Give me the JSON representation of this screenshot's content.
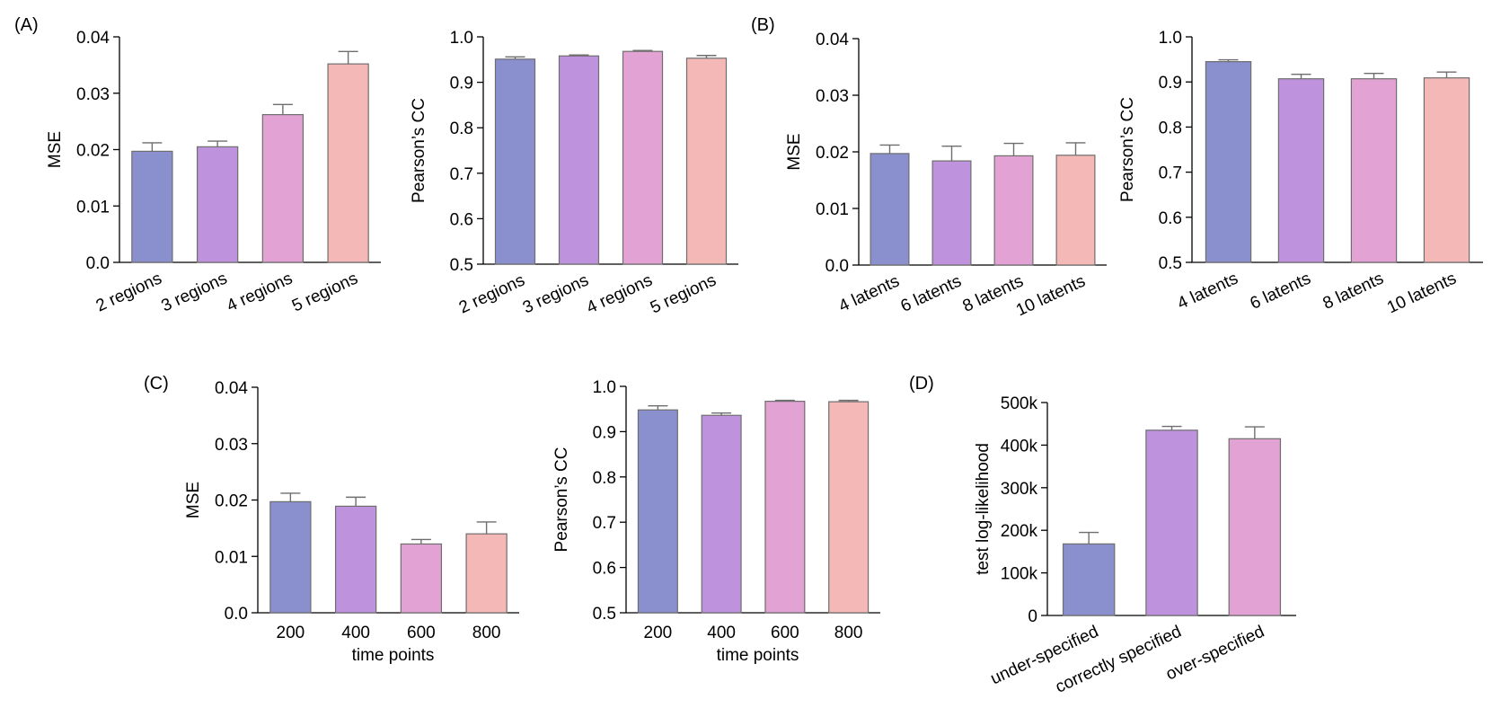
{
  "panel_labels": [
    "(A)",
    "(B)",
    "(C)",
    "(D)"
  ],
  "colors": [
    "#8a8fcd",
    "#be92dc",
    "#e2a2d3",
    "#f4b9b7"
  ],
  "chart_data": [
    {
      "id": "A-mse",
      "panel": "(A)",
      "type": "bar",
      "categories": [
        "2 regions",
        "3 regions",
        "4 regions",
        "5 regions"
      ],
      "values": [
        0.0197,
        0.0205,
        0.0262,
        0.0352
      ],
      "errors": [
        0.0015,
        0.001,
        0.0018,
        0.0022
      ],
      "ylabel": "MSE",
      "xlabel": "",
      "ylim": [
        0.0,
        0.04
      ],
      "yticks": [
        "0.0",
        "0.01",
        "0.02",
        "0.03",
        "0.04"
      ],
      "rotate_x": true,
      "grid": false
    },
    {
      "id": "A-cc",
      "panel": "(A)",
      "type": "bar",
      "categories": [
        "2 regions",
        "3 regions",
        "4 regions",
        "5 regions"
      ],
      "values": [
        0.951,
        0.958,
        0.968,
        0.953
      ],
      "errors": [
        0.005,
        0.002,
        0.002,
        0.006
      ],
      "ylabel": "Pearson’s CC",
      "xlabel": "",
      "ylim": [
        0.5,
        1.0
      ],
      "yticks": [
        "0.5",
        "0.6",
        "0.7",
        "0.8",
        "0.9",
        "1.0"
      ],
      "rotate_x": true,
      "grid": false
    },
    {
      "id": "B-mse",
      "panel": "(B)",
      "type": "bar",
      "categories": [
        "4 latents",
        "6 latents",
        "8 latents",
        "10 latents"
      ],
      "values": [
        0.0197,
        0.0184,
        0.0193,
        0.0194
      ],
      "errors": [
        0.0015,
        0.0026,
        0.0022,
        0.0022
      ],
      "ylabel": "MSE",
      "xlabel": "",
      "ylim": [
        0.0,
        0.04
      ],
      "yticks": [
        "0.0",
        "0.01",
        "0.02",
        "0.03",
        "0.04"
      ],
      "rotate_x": true,
      "grid": false
    },
    {
      "id": "B-cc",
      "panel": "(B)",
      "type": "bar",
      "categories": [
        "4 latents",
        "6 latents",
        "8 latents",
        "10 latents"
      ],
      "values": [
        0.945,
        0.907,
        0.907,
        0.909
      ],
      "errors": [
        0.004,
        0.01,
        0.012,
        0.013
      ],
      "ylabel": "Pearson’s CC",
      "xlabel": "",
      "ylim": [
        0.5,
        1.0
      ],
      "yticks": [
        "0.5",
        "0.6",
        "0.7",
        "0.8",
        "0.9",
        "1.0"
      ],
      "rotate_x": true,
      "grid": false
    },
    {
      "id": "C-mse",
      "panel": "(C)",
      "type": "bar",
      "categories": [
        "200",
        "400",
        "600",
        "800"
      ],
      "values": [
        0.0197,
        0.0189,
        0.0122,
        0.014
      ],
      "errors": [
        0.0015,
        0.0016,
        0.0008,
        0.0021
      ],
      "ylabel": "MSE",
      "xlabel": "time points",
      "ylim": [
        0.0,
        0.04
      ],
      "yticks": [
        "0.0",
        "0.01",
        "0.02",
        "0.03",
        "0.04"
      ],
      "rotate_x": false,
      "grid": false
    },
    {
      "id": "C-cc",
      "panel": "(C)",
      "type": "bar",
      "categories": [
        "200",
        "400",
        "600",
        "800"
      ],
      "values": [
        0.948,
        0.936,
        0.967,
        0.966
      ],
      "errors": [
        0.009,
        0.005,
        0.002,
        0.003
      ],
      "ylabel": "Pearson’s CC",
      "xlabel": "time points",
      "ylim": [
        0.5,
        1.0
      ],
      "yticks": [
        "0.5",
        "0.6",
        "0.7",
        "0.8",
        "0.9",
        "1.0"
      ],
      "rotate_x": false,
      "grid": false
    },
    {
      "id": "D-ll",
      "panel": "(D)",
      "type": "bar",
      "categories": [
        "under-specified",
        "correctly specified",
        "over-specified"
      ],
      "values": [
        168000,
        435000,
        415000
      ],
      "errors": [
        27000,
        9000,
        28000
      ],
      "ylabel": "test log-likelihood",
      "xlabel": "",
      "ylim": [
        0,
        500000
      ],
      "yticks": [
        "0",
        "100k",
        "200k",
        "300k",
        "400k",
        "500k"
      ],
      "rotate_x": true,
      "grid": false
    }
  ]
}
